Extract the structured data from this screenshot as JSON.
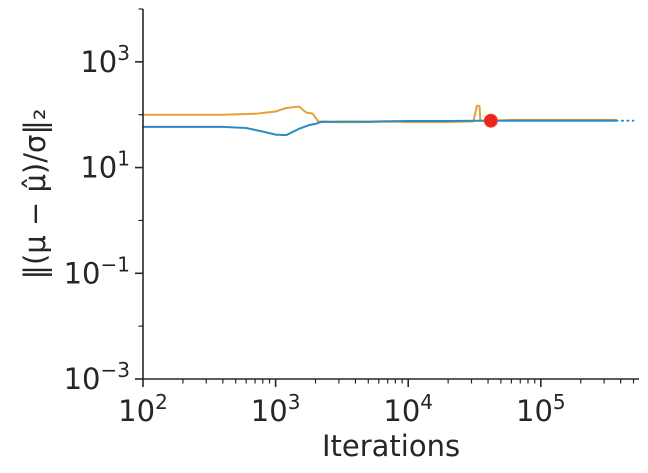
{
  "chart_data": {
    "type": "line",
    "xlabel": "Iterations",
    "ylabel": "‖(μ − μ̂)/σ‖₂",
    "x_scale": "log",
    "y_scale": "log",
    "xlim": [
      100,
      550000
    ],
    "ylim": [
      0.001,
      10000
    ],
    "x_ticks": [
      {
        "value": 100,
        "base": "10",
        "exp": "2"
      },
      {
        "value": 1000,
        "base": "10",
        "exp": "3"
      },
      {
        "value": 10000,
        "base": "10",
        "exp": "4"
      },
      {
        "value": 100000,
        "base": "10",
        "exp": "5"
      }
    ],
    "y_ticks": [
      {
        "value": 0.001,
        "base": "10",
        "exp": "−3"
      },
      {
        "value": 0.1,
        "base": "10",
        "exp": "−1"
      },
      {
        "value": 10,
        "base": "10",
        "exp": "1"
      },
      {
        "value": 1000,
        "base": "10",
        "exp": "3"
      }
    ],
    "grid": false,
    "legend": "none",
    "series": [
      {
        "color": "#e5a03a",
        "x": [
          100,
          200,
          400,
          700,
          1000,
          1200,
          1500,
          1700,
          1900,
          2100,
          2300,
          3000,
          5000,
          8000,
          10000,
          20000,
          31000,
          33000,
          34500,
          35000,
          36000,
          40000,
          42000,
          60000,
          100000,
          200000,
          370000
        ],
        "y": [
          100,
          100,
          100,
          104,
          115,
          134,
          142,
          110,
          105,
          74,
          75,
          72,
          73,
          74,
          73,
          73,
          75,
          148,
          146,
          78,
          77,
          77,
          77,
          80,
          80,
          80,
          80
        ]
      },
      {
        "color": "#2f8bbf",
        "x": [
          100,
          200,
          400,
          600,
          800,
          1000,
          1200,
          1500,
          1800,
          2000,
          2200,
          3000,
          5000,
          10000,
          20000,
          33000,
          40000,
          42000,
          100000,
          300000,
          370000
        ],
        "y": [
          59,
          59,
          59,
          56,
          48,
          42,
          41,
          54,
          64,
          67,
          73,
          74,
          74,
          76,
          76,
          77,
          77,
          77,
          77,
          77,
          77
        ]
      },
      {
        "color": "#2f8bbf",
        "style": "dotted",
        "x": [
          370000,
          500000
        ],
        "y": [
          77,
          77
        ]
      }
    ],
    "markers": [
      {
        "x": 42000,
        "y": 77,
        "color": "#e8281c",
        "edge": "#ff3b30"
      }
    ]
  }
}
